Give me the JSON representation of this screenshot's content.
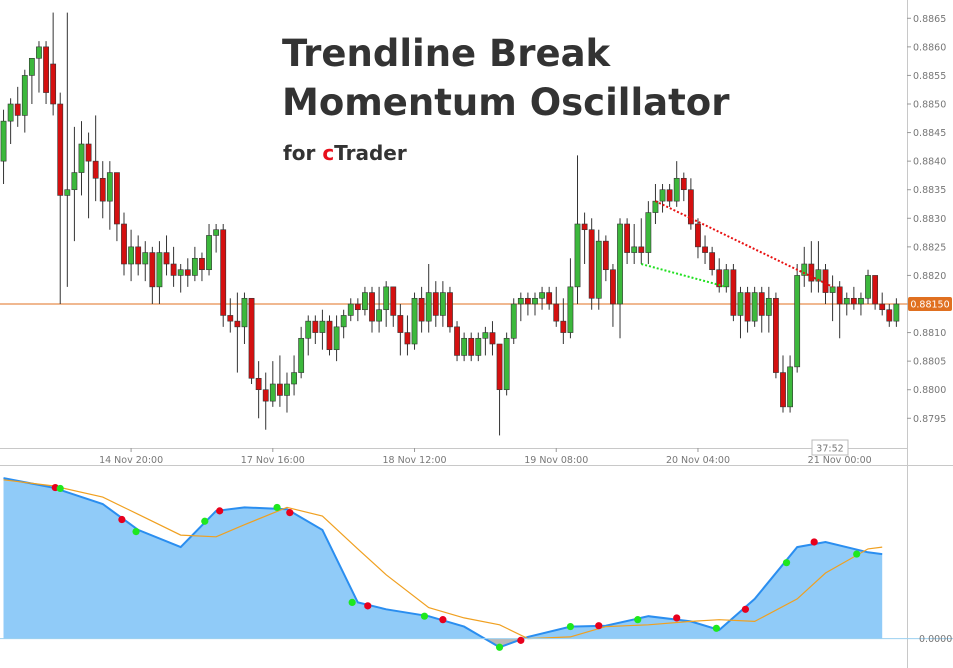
{
  "chart_data": [
    {
      "type": "candlestick",
      "title_lines": [
        "Trendline Break",
        "Momentum Oscillator"
      ],
      "subtitle_parts": [
        "for",
        "c",
        "Trader"
      ],
      "subtitle_colors": [
        "#333333",
        "#e8101c",
        "#333333"
      ],
      "up_color": "#3cb83c",
      "down_color": "#d41010",
      "xlim": [
        -0.5,
        127.5
      ],
      "xticks": [
        {
          "value": 18,
          "label": "14 Nov 20:00"
        },
        {
          "value": 38,
          "label": "17 Nov 16:00"
        },
        {
          "value": 58,
          "label": "18 Nov 12:00"
        },
        {
          "value": 78,
          "label": "19 Nov 08:00"
        },
        {
          "value": 98,
          "label": "20 Nov 04:00"
        },
        {
          "value": 118,
          "label": "21 Nov 00:00"
        }
      ],
      "ylim": [
        0.87898,
        0.88682
      ],
      "yticks": [
        0.8795,
        {
          "value": 0.88,
          "label": "0.8800"
        },
        0.8805,
        {
          "value": 0.881,
          "label": "0.8810"
        },
        0.8815,
        {
          "value": 0.882,
          "label": "0.8820"
        },
        0.8825,
        {
          "value": 0.883,
          "label": "0.8830"
        },
        0.8835,
        {
          "value": 0.884,
          "label": "0.8840"
        },
        0.8845,
        {
          "value": 0.885,
          "label": "0.8850"
        },
        0.8855,
        {
          "value": 0.886,
          "label": "0.8860"
        },
        0.8865
      ],
      "current_price": {
        "value": 0.8815,
        "label": "0.88150",
        "color": "#e07020"
      },
      "timer": "37:52",
      "trendlines": [
        {
          "color": "#e81010",
          "x": [
            92,
            117
          ],
          "y": [
            0.8833,
            0.8818
          ]
        },
        {
          "color": "#20e020",
          "x": [
            90,
            102
          ],
          "y": [
            0.8822,
            0.8818
          ]
        }
      ],
      "candles": [
        [
          0.884,
          0.8849,
          0.8836,
          0.8847
        ],
        [
          0.8847,
          0.8851,
          0.8843,
          0.885
        ],
        [
          0.885,
          0.8853,
          0.8846,
          0.8848
        ],
        [
          0.8848,
          0.8856,
          0.8845,
          0.8855
        ],
        [
          0.8855,
          0.8858,
          0.885,
          0.8858
        ],
        [
          0.8858,
          0.8861,
          0.8852,
          0.886
        ],
        [
          0.886,
          0.8861,
          0.885,
          0.8852
        ],
        [
          0.8857,
          0.8866,
          0.8848,
          0.885
        ],
        [
          0.885,
          0.8852,
          0.8815,
          0.8834
        ],
        [
          0.8834,
          0.8866,
          0.8818,
          0.8835
        ],
        [
          0.8835,
          0.8846,
          0.8826,
          0.8838
        ],
        [
          0.8838,
          0.8847,
          0.8834,
          0.8843
        ],
        [
          0.8843,
          0.8845,
          0.883,
          0.884
        ],
        [
          0.884,
          0.8848,
          0.8833,
          0.8837
        ],
        [
          0.8837,
          0.884,
          0.883,
          0.8833
        ],
        [
          0.8833,
          0.884,
          0.8828,
          0.8838
        ],
        [
          0.8838,
          0.8838,
          0.8826,
          0.8829
        ],
        [
          0.8829,
          0.8831,
          0.882,
          0.8822
        ],
        [
          0.8822,
          0.8828,
          0.8819,
          0.8825
        ],
        [
          0.8825,
          0.8827,
          0.882,
          0.8822
        ],
        [
          0.8822,
          0.8826,
          0.8819,
          0.8824
        ],
        [
          0.8824,
          0.8825,
          0.8815,
          0.8818
        ],
        [
          0.8818,
          0.8826,
          0.8815,
          0.8824
        ],
        [
          0.8824,
          0.8827,
          0.882,
          0.8822
        ],
        [
          0.8822,
          0.8825,
          0.8818,
          0.882
        ],
        [
          0.882,
          0.8822,
          0.8817,
          0.8821
        ],
        [
          0.8821,
          0.8823,
          0.8818,
          0.882
        ],
        [
          0.882,
          0.8825,
          0.8819,
          0.8823
        ],
        [
          0.8823,
          0.8824,
          0.8819,
          0.8821
        ],
        [
          0.8821,
          0.8829,
          0.882,
          0.8827
        ],
        [
          0.8827,
          0.8829,
          0.8824,
          0.8828
        ],
        [
          0.8828,
          0.8829,
          0.8811,
          0.8813
        ],
        [
          0.8813,
          0.8816,
          0.881,
          0.8812
        ],
        [
          0.8812,
          0.8817,
          0.8803,
          0.8811
        ],
        [
          0.8811,
          0.8817,
          0.8808,
          0.8816
        ],
        [
          0.8816,
          0.8816,
          0.8801,
          0.8802
        ],
        [
          0.8802,
          0.8805,
          0.8795,
          0.88
        ],
        [
          0.88,
          0.8803,
          0.8793,
          0.8798
        ],
        [
          0.8798,
          0.8805,
          0.8797,
          0.8801
        ],
        [
          0.8801,
          0.8806,
          0.8797,
          0.8799
        ],
        [
          0.8799,
          0.8803,
          0.8796,
          0.8801
        ],
        [
          0.8801,
          0.8806,
          0.8799,
          0.8803
        ],
        [
          0.8803,
          0.8811,
          0.8802,
          0.8809
        ],
        [
          0.8809,
          0.8813,
          0.8806,
          0.8812
        ],
        [
          0.8812,
          0.8813,
          0.8808,
          0.881
        ],
        [
          0.881,
          0.8814,
          0.8807,
          0.8812
        ],
        [
          0.8812,
          0.8813,
          0.8806,
          0.8807
        ],
        [
          0.8807,
          0.8813,
          0.8805,
          0.8811
        ],
        [
          0.8811,
          0.8814,
          0.8809,
          0.8813
        ],
        [
          0.8813,
          0.8816,
          0.8812,
          0.8815
        ],
        [
          0.8815,
          0.8816,
          0.8812,
          0.8814
        ],
        [
          0.8814,
          0.8818,
          0.8813,
          0.8817
        ],
        [
          0.8817,
          0.8818,
          0.881,
          0.8812
        ],
        [
          0.8812,
          0.8818,
          0.881,
          0.8814
        ],
        [
          0.8814,
          0.8819,
          0.8811,
          0.8818
        ],
        [
          0.8818,
          0.8818,
          0.8811,
          0.8813
        ],
        [
          0.8813,
          0.8815,
          0.8806,
          0.881
        ],
        [
          0.881,
          0.8813,
          0.8806,
          0.8808
        ],
        [
          0.8808,
          0.8817,
          0.8807,
          0.8816
        ],
        [
          0.8816,
          0.8818,
          0.881,
          0.8812
        ],
        [
          0.8812,
          0.8822,
          0.881,
          0.8817
        ],
        [
          0.8817,
          0.8819,
          0.8811,
          0.8813
        ],
        [
          0.8813,
          0.8819,
          0.8811,
          0.8817
        ],
        [
          0.8817,
          0.8818,
          0.881,
          0.8811
        ],
        [
          0.8811,
          0.8812,
          0.8805,
          0.8806
        ],
        [
          0.8806,
          0.881,
          0.8805,
          0.8809
        ],
        [
          0.8809,
          0.881,
          0.8805,
          0.8806
        ],
        [
          0.8806,
          0.881,
          0.8805,
          0.8809
        ],
        [
          0.8809,
          0.8811,
          0.8806,
          0.881
        ],
        [
          0.881,
          0.8812,
          0.8806,
          0.8808
        ],
        [
          0.8808,
          0.8808,
          0.8792,
          0.88
        ],
        [
          0.88,
          0.881,
          0.8799,
          0.8809
        ],
        [
          0.8809,
          0.8816,
          0.8808,
          0.8815
        ],
        [
          0.8815,
          0.8817,
          0.8812,
          0.8816
        ],
        [
          0.8816,
          0.8817,
          0.8813,
          0.8815
        ],
        [
          0.8815,
          0.8817,
          0.8813,
          0.8816
        ],
        [
          0.8816,
          0.8818,
          0.8814,
          0.8817
        ],
        [
          0.8817,
          0.8818,
          0.8814,
          0.8815
        ],
        [
          0.8815,
          0.8818,
          0.8811,
          0.8812
        ],
        [
          0.8812,
          0.8816,
          0.8808,
          0.881
        ],
        [
          0.881,
          0.8823,
          0.8809,
          0.8818
        ],
        [
          0.8818,
          0.8841,
          0.8815,
          0.8829
        ],
        [
          0.8829,
          0.8831,
          0.8822,
          0.8828
        ],
        [
          0.8828,
          0.883,
          0.8814,
          0.8816
        ],
        [
          0.8816,
          0.8828,
          0.8814,
          0.8826
        ],
        [
          0.8826,
          0.8827,
          0.8819,
          0.8821
        ],
        [
          0.8821,
          0.8822,
          0.8811,
          0.8815
        ],
        [
          0.8815,
          0.883,
          0.8809,
          0.8829
        ],
        [
          0.8829,
          0.883,
          0.8822,
          0.8824
        ],
        [
          0.8824,
          0.8829,
          0.8822,
          0.8825
        ],
        [
          0.8825,
          0.883,
          0.8822,
          0.8824
        ],
        [
          0.8824,
          0.8833,
          0.8822,
          0.8831
        ],
        [
          0.8831,
          0.8836,
          0.8829,
          0.8833
        ],
        [
          0.8833,
          0.8836,
          0.8831,
          0.8835
        ],
        [
          0.8835,
          0.8836,
          0.8832,
          0.8833
        ],
        [
          0.8833,
          0.884,
          0.8832,
          0.8837
        ],
        [
          0.8837,
          0.8838,
          0.8833,
          0.8835
        ],
        [
          0.8835,
          0.8837,
          0.8828,
          0.8829
        ],
        [
          0.8829,
          0.883,
          0.8823,
          0.8825
        ],
        [
          0.8825,
          0.8827,
          0.8822,
          0.8824
        ],
        [
          0.8824,
          0.8825,
          0.882,
          0.8821
        ],
        [
          0.8821,
          0.8823,
          0.8817,
          0.8818
        ],
        [
          0.8818,
          0.8822,
          0.8817,
          0.8821
        ],
        [
          0.8821,
          0.8822,
          0.8812,
          0.8813
        ],
        [
          0.8813,
          0.8818,
          0.8809,
          0.8817
        ],
        [
          0.8817,
          0.8818,
          0.881,
          0.8812
        ],
        [
          0.8812,
          0.8818,
          0.8811,
          0.8817
        ],
        [
          0.8817,
          0.8818,
          0.881,
          0.8813
        ],
        [
          0.8813,
          0.8818,
          0.881,
          0.8816
        ],
        [
          0.8816,
          0.8817,
          0.8802,
          0.8803
        ],
        [
          0.8803,
          0.8806,
          0.8796,
          0.8797
        ],
        [
          0.8797,
          0.8806,
          0.8796,
          0.8804
        ],
        [
          0.8804,
          0.8822,
          0.8803,
          0.882
        ],
        [
          0.882,
          0.8825,
          0.8818,
          0.8822
        ],
        [
          0.8822,
          0.8826,
          0.8817,
          0.8819
        ],
        [
          0.8819,
          0.8826,
          0.8817,
          0.8821
        ],
        [
          0.8821,
          0.8822,
          0.8815,
          0.8817
        ],
        [
          0.8817,
          0.882,
          0.8812,
          0.8818
        ],
        [
          0.8818,
          0.8819,
          0.8809,
          0.8815
        ],
        [
          0.8815,
          0.8817,
          0.8813,
          0.8816
        ],
        [
          0.8816,
          0.8818,
          0.8814,
          0.8815
        ],
        [
          0.8815,
          0.8817,
          0.8813,
          0.8816
        ],
        [
          0.8816,
          0.8821,
          0.8815,
          0.882
        ],
        [
          0.882,
          0.882,
          0.8814,
          0.8815
        ],
        [
          0.8815,
          0.8817,
          0.8813,
          0.8814
        ],
        [
          0.8814,
          0.8815,
          0.8811,
          0.8812
        ],
        [
          0.8812,
          0.8816,
          0.8811,
          0.8815
        ]
      ]
    },
    {
      "type": "area",
      "xlim": [
        -0.5,
        127.5
      ],
      "ylim": [
        -0.17,
        1.0
      ],
      "yticks": [
        {
          "value": 0,
          "label": "0.0000"
        }
      ],
      "x": [
        0,
        7,
        14,
        19,
        25,
        30,
        34,
        40,
        45,
        50,
        54,
        60,
        65,
        70,
        74,
        80,
        85,
        91,
        97,
        101,
        106,
        112,
        116,
        122,
        124
      ],
      "series": [
        {
          "color": "#2a8ef0",
          "fill": "#90cbf8",
          "negative_fill": "#b8b8b8",
          "values": [
            0.93,
            0.875,
            0.78,
            0.63,
            0.53,
            0.74,
            0.76,
            0.75,
            0.63,
            0.21,
            0.17,
            0.13,
            0.07,
            -0.05,
            0.01,
            0.07,
            0.075,
            0.13,
            0.1,
            0.05,
            0.23,
            0.53,
            0.56,
            0.5,
            0.49
          ]
        },
        {
          "color": "#f0a020",
          "values": [
            0.92,
            0.885,
            0.82,
            0.72,
            0.6,
            0.59,
            0.66,
            0.76,
            0.71,
            0.52,
            0.37,
            0.18,
            0.12,
            0.08,
            0.0,
            0.01,
            0.07,
            0.08,
            0.1,
            0.11,
            0.1,
            0.23,
            0.38,
            0.52,
            0.53
          ]
        }
      ],
      "signals": [
        {
          "x": 7.3,
          "y": 0.875,
          "color": "#e8001c"
        },
        {
          "x": 8,
          "y": 0.87,
          "color": "#1ee81e"
        },
        {
          "x": 16.7,
          "y": 0.69,
          "color": "#e8001c"
        },
        {
          "x": 18.7,
          "y": 0.62,
          "color": "#1ee81e"
        },
        {
          "x": 28.4,
          "y": 0.68,
          "color": "#1ee81e"
        },
        {
          "x": 30.5,
          "y": 0.74,
          "color": "#e8001c"
        },
        {
          "x": 38.6,
          "y": 0.76,
          "color": "#1ee81e"
        },
        {
          "x": 40.4,
          "y": 0.73,
          "color": "#e8001c"
        },
        {
          "x": 49.2,
          "y": 0.21,
          "color": "#1ee81e"
        },
        {
          "x": 51.4,
          "y": 0.19,
          "color": "#e8001c"
        },
        {
          "x": 59.4,
          "y": 0.13,
          "color": "#1ee81e"
        },
        {
          "x": 62,
          "y": 0.11,
          "color": "#e8001c"
        },
        {
          "x": 70,
          "y": -0.05,
          "color": "#1ee81e"
        },
        {
          "x": 73,
          "y": -0.01,
          "color": "#e8001c"
        },
        {
          "x": 80,
          "y": 0.07,
          "color": "#1ee81e"
        },
        {
          "x": 84,
          "y": 0.075,
          "color": "#e8001c"
        },
        {
          "x": 89.5,
          "y": 0.11,
          "color": "#1ee81e"
        },
        {
          "x": 95,
          "y": 0.12,
          "color": "#e8001c"
        },
        {
          "x": 100.6,
          "y": 0.06,
          "color": "#1ee81e"
        },
        {
          "x": 104.7,
          "y": 0.17,
          "color": "#e8001c"
        },
        {
          "x": 110.5,
          "y": 0.44,
          "color": "#1ee81e"
        },
        {
          "x": 114.4,
          "y": 0.56,
          "color": "#e8001c"
        },
        {
          "x": 120.4,
          "y": 0.49,
          "color": "#1ee81e"
        }
      ]
    }
  ]
}
